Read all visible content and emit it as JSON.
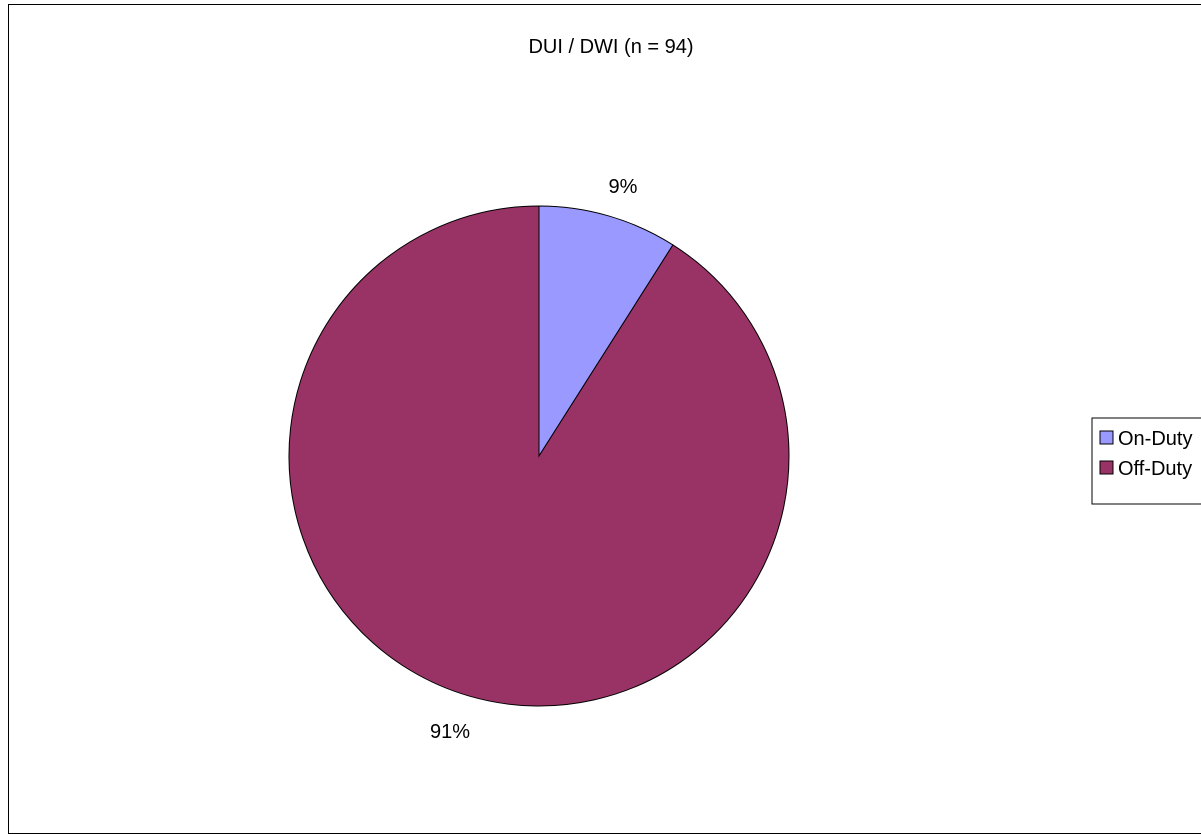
{
  "chart_data": {
    "type": "pie",
    "title": "DUI / DWI (n = 94)",
    "categories": [
      "On-Duty",
      "Off-Duty"
    ],
    "values": [
      9,
      91
    ],
    "data_labels": [
      "9%",
      "91%"
    ],
    "colors": [
      "#9999FF",
      "#993366"
    ],
    "legend_position": "right",
    "start_angle": "12 o'clock, clockwise"
  }
}
